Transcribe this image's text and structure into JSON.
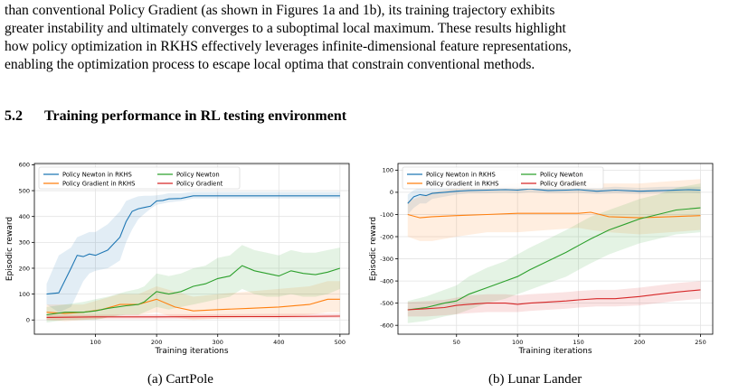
{
  "paragraph": {
    "lines": [
      "than conventional Policy Gradient (as shown in Figures 1a and 1b), its training trajectory exhibits",
      "greater instability and ultimately converges to a suboptimal local maximum. These results highlight",
      "how policy optimization in RKHS effectively leverages infinite-dimensional feature representations,",
      "enabling the optimization process to escape local optima that constrain conventional methods."
    ]
  },
  "section": {
    "number": "5.2",
    "title": "Training performance in RL testing environment"
  },
  "colors": {
    "newton_rkhs": "#1f77b4",
    "gradient_rkhs": "#ff7f0e",
    "newton": "#2ca02c",
    "gradient": "#d62728"
  },
  "chart_data": [
    {
      "type": "line",
      "caption": "(a) CartPole",
      "xlabel": "Training iterations",
      "ylabel": "Episodic reward",
      "xlim": [
        0,
        515
      ],
      "ylim": [
        -55,
        605
      ],
      "xticks": [
        100,
        200,
        300,
        400,
        500
      ],
      "yticks": [
        0,
        100,
        200,
        300,
        400,
        500,
        600
      ],
      "grid": true,
      "legend_position": "top-left",
      "series": [
        {
          "name": "Policy Newton in RKHS",
          "color_key": "newton_rkhs",
          "x": [
            20,
            40,
            60,
            70,
            80,
            90,
            100,
            120,
            140,
            150,
            160,
            170,
            180,
            190,
            200,
            210,
            220,
            240,
            260,
            300,
            400,
            500
          ],
          "y": [
            100,
            105,
            200,
            250,
            245,
            255,
            250,
            270,
            320,
            380,
            420,
            430,
            435,
            440,
            460,
            462,
            468,
            470,
            480,
            480,
            480,
            480
          ],
          "band_low": [
            60,
            30,
            50,
            100,
            150,
            180,
            190,
            200,
            230,
            300,
            350,
            390,
            410,
            430,
            445,
            450,
            455,
            460,
            470,
            470,
            470,
            470
          ],
          "band_high": [
            140,
            250,
            280,
            320,
            330,
            340,
            340,
            370,
            420,
            460,
            470,
            478,
            480,
            480,
            482,
            485,
            490,
            490,
            495,
            495,
            495,
            495
          ]
        },
        {
          "name": "Policy Gradient in RKHS",
          "color_key": "gradient_rkhs",
          "x": [
            20,
            50,
            80,
            110,
            140,
            170,
            200,
            230,
            260,
            300,
            350,
            400,
            450,
            480,
            500
          ],
          "y": [
            30,
            25,
            30,
            40,
            60,
            60,
            80,
            50,
            35,
            40,
            45,
            50,
            60,
            80,
            80
          ],
          "band_low": [
            0,
            -5,
            0,
            5,
            20,
            20,
            30,
            10,
            0,
            5,
            10,
            10,
            20,
            30,
            30
          ],
          "band_high": [
            60,
            60,
            60,
            80,
            100,
            100,
            130,
            110,
            90,
            100,
            110,
            120,
            130,
            150,
            150
          ]
        },
        {
          "name": "Policy Newton",
          "color_key": "newton",
          "x": [
            20,
            50,
            80,
            100,
            120,
            150,
            170,
            180,
            200,
            220,
            240,
            260,
            280,
            300,
            320,
            340,
            360,
            380,
            400,
            420,
            440,
            460,
            480,
            500
          ],
          "y": [
            20,
            30,
            30,
            35,
            45,
            55,
            60,
            70,
            110,
            100,
            110,
            130,
            140,
            160,
            170,
            210,
            190,
            180,
            170,
            190,
            180,
            175,
            185,
            200
          ],
          "band_low": [
            -10,
            0,
            0,
            0,
            10,
            20,
            20,
            30,
            50,
            40,
            50,
            60,
            70,
            80,
            90,
            120,
            100,
            90,
            90,
            100,
            90,
            90,
            100,
            120
          ],
          "band_high": [
            50,
            60,
            70,
            80,
            90,
            110,
            120,
            130,
            180,
            170,
            180,
            200,
            210,
            240,
            250,
            290,
            270,
            260,
            250,
            270,
            260,
            260,
            270,
            280
          ]
        },
        {
          "name": "Policy Gradient",
          "color_key": "gradient",
          "x": [
            20,
            100,
            200,
            300,
            400,
            500
          ],
          "y": [
            10,
            12,
            12,
            13,
            13,
            15
          ],
          "band_low": [
            0,
            3,
            3,
            5,
            5,
            7
          ],
          "band_high": [
            20,
            20,
            22,
            22,
            24,
            25
          ]
        }
      ]
    },
    {
      "type": "line",
      "caption": "(b) Lunar Lander",
      "xlabel": "Training iterations",
      "ylabel": "Episodic reward",
      "xlim": [
        2,
        260
      ],
      "ylim": [
        -640,
        130
      ],
      "xticks": [
        50,
        100,
        150,
        200,
        250
      ],
      "yticks": [
        -600,
        -500,
        -400,
        -300,
        -200,
        -100,
        0,
        100
      ],
      "grid": true,
      "legend_position": "top-left",
      "series": [
        {
          "name": "Policy Newton in RKHS",
          "color_key": "newton_rkhs",
          "x": [
            10,
            15,
            20,
            25,
            30,
            40,
            50,
            60,
            75,
            90,
            100,
            110,
            125,
            140,
            150,
            165,
            180,
            200,
            220,
            240,
            250
          ],
          "y": [
            -50,
            -20,
            -10,
            -15,
            -5,
            0,
            5,
            8,
            10,
            12,
            10,
            15,
            8,
            10,
            12,
            5,
            10,
            5,
            8,
            12,
            10
          ],
          "band_low": [
            -100,
            -70,
            -50,
            -50,
            -30,
            -20,
            -10,
            -5,
            -5,
            -3,
            -5,
            0,
            -5,
            -5,
            -3,
            -8,
            -5,
            -8,
            -5,
            -3,
            -5
          ],
          "band_high": [
            -10,
            10,
            20,
            20,
            25,
            25,
            25,
            25,
            25,
            25,
            25,
            30,
            25,
            25,
            25,
            20,
            25,
            20,
            25,
            25,
            25
          ]
        },
        {
          "name": "Policy Gradient in RKHS",
          "color_key": "gradient_rkhs",
          "x": [
            10,
            20,
            30,
            50,
            75,
            100,
            125,
            150,
            160,
            175,
            200,
            225,
            250
          ],
          "y": [
            -100,
            -115,
            -110,
            -105,
            -100,
            -95,
            -95,
            -95,
            -90,
            -110,
            -115,
            -110,
            -105
          ],
          "band_low": [
            -200,
            -220,
            -220,
            -200,
            -180,
            -180,
            -170,
            -160,
            -170,
            -180,
            -190,
            -180,
            -170
          ],
          "band_high": [
            -40,
            -20,
            0,
            20,
            30,
            40,
            50,
            60,
            40,
            40,
            40,
            50,
            60
          ]
        },
        {
          "name": "Policy Newton",
          "color_key": "newton",
          "x": [
            10,
            25,
            40,
            50,
            60,
            75,
            90,
            100,
            110,
            125,
            140,
            150,
            160,
            175,
            190,
            200,
            215,
            230,
            250
          ],
          "y": [
            -530,
            -520,
            -500,
            -490,
            -460,
            -430,
            -400,
            -380,
            -350,
            -310,
            -270,
            -240,
            -210,
            -170,
            -140,
            -120,
            -100,
            -80,
            -70
          ],
          "band_low": [
            -590,
            -580,
            -560,
            -550,
            -530,
            -500,
            -480,
            -460,
            -440,
            -410,
            -380,
            -350,
            -320,
            -280,
            -250,
            -230,
            -210,
            -190,
            -180
          ],
          "band_high": [
            -490,
            -470,
            -440,
            -420,
            -380,
            -340,
            -310,
            -280,
            -250,
            -210,
            -170,
            -140,
            -110,
            -80,
            -50,
            -30,
            -10,
            20,
            40
          ]
        },
        {
          "name": "Policy Gradient",
          "color_key": "gradient",
          "x": [
            10,
            25,
            40,
            50,
            60,
            75,
            90,
            100,
            110,
            125,
            140,
            150,
            165,
            180,
            200,
            215,
            230,
            250
          ],
          "y": [
            -530,
            -525,
            -520,
            -510,
            -505,
            -500,
            -500,
            -505,
            -500,
            -495,
            -490,
            -485,
            -480,
            -480,
            -470,
            -460,
            -450,
            -440
          ],
          "band_low": [
            -560,
            -560,
            -555,
            -550,
            -545,
            -540,
            -540,
            -540,
            -535,
            -530,
            -525,
            -520,
            -515,
            -515,
            -510,
            -500,
            -490,
            -480
          ],
          "band_high": [
            -495,
            -490,
            -485,
            -475,
            -465,
            -460,
            -460,
            -465,
            -460,
            -455,
            -450,
            -445,
            -440,
            -440,
            -430,
            -420,
            -410,
            -400
          ]
        }
      ]
    }
  ]
}
